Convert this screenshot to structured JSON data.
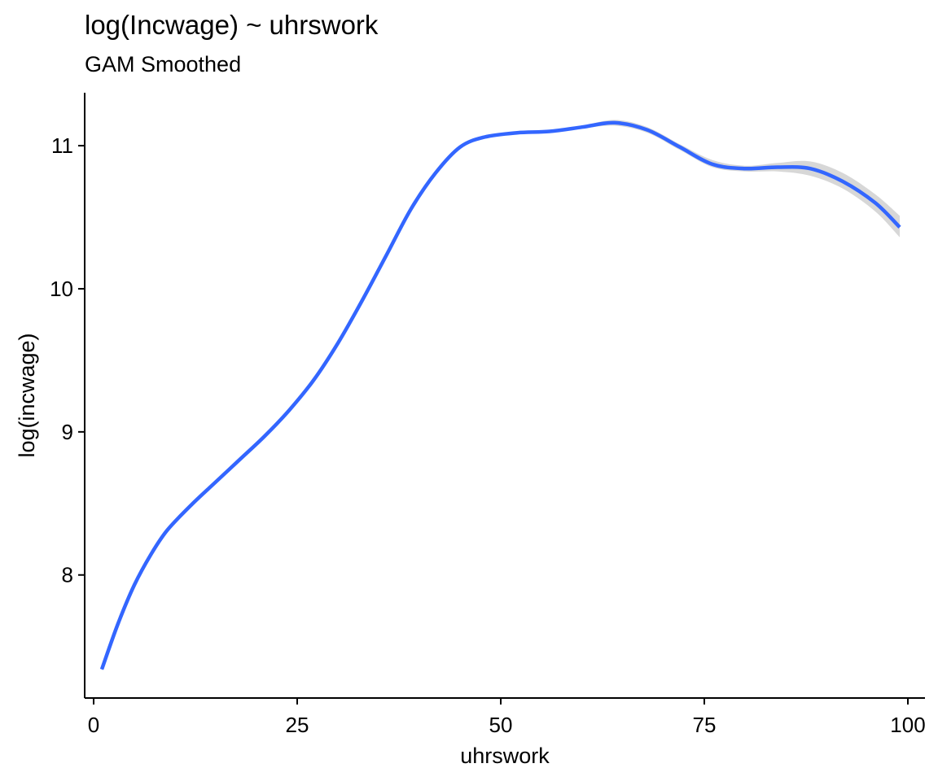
{
  "title": "log(Incwage) ~ uhrswork",
  "subtitle": "GAM Smoothed",
  "chart_data": {
    "type": "line",
    "title": "log(Incwage) ~ uhrswork",
    "subtitle": "GAM Smoothed",
    "xlabel": "uhrswork",
    "ylabel": "log(incwage)",
    "xlim": [
      -1.1,
      102.1
    ],
    "ylim": [
      7.14,
      11.37
    ],
    "x_ticks": [
      0,
      25,
      50,
      75,
      100
    ],
    "y_ticks": [
      8,
      9,
      10,
      11
    ],
    "x_tick_labels": [
      "0",
      "25",
      "50",
      "75",
      "100"
    ],
    "y_tick_labels": [
      "8",
      "9",
      "10",
      "11"
    ],
    "grid": false,
    "legend": "none",
    "series": [
      {
        "color": "#3366FF",
        "band_color": "#D3D3D3",
        "points": [
          {
            "x": 1,
            "y": 7.34,
            "lo": 7.33,
            "hi": 7.35
          },
          {
            "x": 3,
            "y": 7.66,
            "lo": 7.65,
            "hi": 7.67
          },
          {
            "x": 5,
            "y": 7.93,
            "lo": 7.92,
            "hi": 7.94
          },
          {
            "x": 7,
            "y": 8.14,
            "lo": 8.13,
            "hi": 8.15
          },
          {
            "x": 9,
            "y": 8.31,
            "lo": 8.3,
            "hi": 8.32
          },
          {
            "x": 12,
            "y": 8.49,
            "lo": 8.48,
            "hi": 8.5
          },
          {
            "x": 15,
            "y": 8.65,
            "lo": 8.64,
            "hi": 8.66
          },
          {
            "x": 18,
            "y": 8.81,
            "lo": 8.8,
            "hi": 8.82
          },
          {
            "x": 21,
            "y": 8.97,
            "lo": 8.96,
            "hi": 8.98
          },
          {
            "x": 24,
            "y": 9.15,
            "lo": 9.14,
            "hi": 9.16
          },
          {
            "x": 27,
            "y": 9.36,
            "lo": 9.35,
            "hi": 9.37
          },
          {
            "x": 30,
            "y": 9.62,
            "lo": 9.61,
            "hi": 9.63
          },
          {
            "x": 33,
            "y": 9.92,
            "lo": 9.91,
            "hi": 9.93
          },
          {
            "x": 36,
            "y": 10.24,
            "lo": 10.23,
            "hi": 10.25
          },
          {
            "x": 39,
            "y": 10.56,
            "lo": 10.55,
            "hi": 10.57
          },
          {
            "x": 42,
            "y": 10.81,
            "lo": 10.8,
            "hi": 10.82
          },
          {
            "x": 45,
            "y": 10.99,
            "lo": 10.98,
            "hi": 11.0
          },
          {
            "x": 48,
            "y": 11.06,
            "lo": 11.05,
            "hi": 11.07
          },
          {
            "x": 52,
            "y": 11.09,
            "lo": 11.08,
            "hi": 11.1
          },
          {
            "x": 56,
            "y": 11.1,
            "lo": 11.09,
            "hi": 11.11
          },
          {
            "x": 60,
            "y": 11.13,
            "lo": 11.12,
            "hi": 11.14
          },
          {
            "x": 64,
            "y": 11.16,
            "lo": 11.14,
            "hi": 11.18
          },
          {
            "x": 68,
            "y": 11.11,
            "lo": 11.09,
            "hi": 11.13
          },
          {
            "x": 72,
            "y": 10.99,
            "lo": 10.97,
            "hi": 11.01
          },
          {
            "x": 76,
            "y": 10.87,
            "lo": 10.85,
            "hi": 10.9
          },
          {
            "x": 80,
            "y": 10.84,
            "lo": 10.82,
            "hi": 10.86
          },
          {
            "x": 84,
            "y": 10.85,
            "lo": 10.82,
            "hi": 10.88
          },
          {
            "x": 88,
            "y": 10.84,
            "lo": 10.79,
            "hi": 10.89
          },
          {
            "x": 92,
            "y": 10.75,
            "lo": 10.7,
            "hi": 10.81
          },
          {
            "x": 96,
            "y": 10.6,
            "lo": 10.54,
            "hi": 10.66
          },
          {
            "x": 99,
            "y": 10.43,
            "lo": 10.36,
            "hi": 10.51
          }
        ]
      }
    ]
  }
}
